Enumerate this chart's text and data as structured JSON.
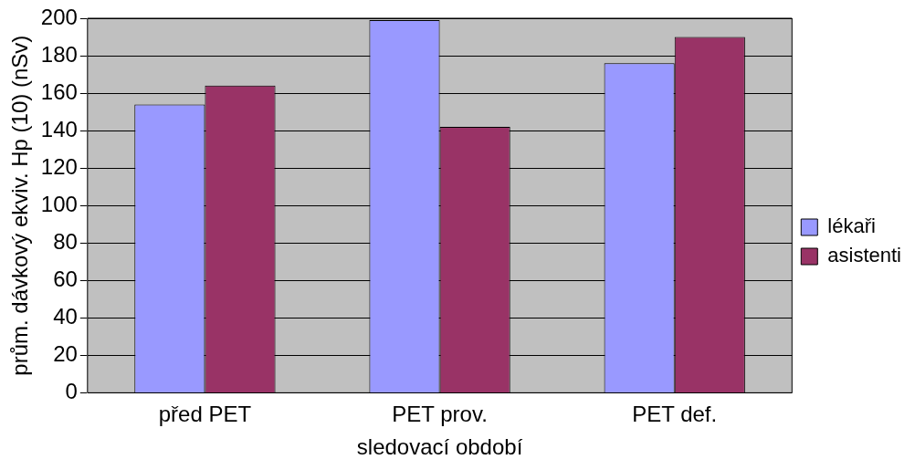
{
  "chart_data": {
    "type": "bar",
    "xlabel": "sledovací období",
    "ylabel": "prům. dávkový ekviv. Hp (10) (nSv)",
    "categories": [
      "před PET",
      "PET prov.",
      "PET def."
    ],
    "series": [
      {
        "name": "lékaři",
        "color": "#9999ff",
        "values": [
          154,
          199,
          176
        ]
      },
      {
        "name": "asistenti",
        "color": "#993366",
        "values": [
          164,
          142,
          190
        ]
      }
    ],
    "ylim": [
      0,
      200
    ],
    "yticks": [
      0,
      20,
      40,
      60,
      80,
      100,
      120,
      140,
      160,
      180,
      200
    ],
    "grid": "y",
    "legend": "right"
  }
}
